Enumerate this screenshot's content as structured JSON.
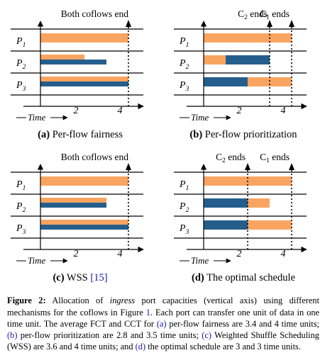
{
  "colors": {
    "orange": "#F9A561",
    "blue": "#255E8C",
    "link": "#1a1aa6"
  },
  "panels": [
    {
      "id": "a",
      "letter": "(a)",
      "title": "Per-flow fairness",
      "top_labels": [
        "Both coflows end"
      ],
      "arrows": [
        4
      ],
      "ports": [
        {
          "label": "P",
          "sub": "1",
          "segments": [
            {
              "color": "orange",
              "from": 0,
              "to": 4
            }
          ]
        },
        {
          "label": "P",
          "sub": "2",
          "segments": [
            {
              "color": "orange",
              "from": 0,
              "to": 2
            },
            {
              "color": "blue",
              "from": 0,
              "to": 3
            }
          ]
        },
        {
          "label": "P",
          "sub": "3",
          "segments": [
            {
              "color": "orange",
              "from": 0,
              "to": 4
            },
            {
              "color": "blue",
              "from": 0,
              "to": 4
            }
          ]
        }
      ]
    },
    {
      "id": "b",
      "letter": "(b)",
      "title": "Per-flow prioritization",
      "top_labels": [
        "C2 ends",
        "C1 ends"
      ],
      "arrows": [
        3,
        4
      ],
      "ports": [
        {
          "label": "P",
          "sub": "1",
          "segments": [
            {
              "color": "orange",
              "from": 0,
              "to": 4
            }
          ]
        },
        {
          "label": "P",
          "sub": "2",
          "segments": [
            {
              "color": "orange",
              "from": 0,
              "to": 1
            },
            {
              "color": "blue",
              "from": 1,
              "to": 3
            }
          ]
        },
        {
          "label": "P",
          "sub": "3",
          "segments": [
            {
              "color": "blue",
              "from": 0,
              "to": 2
            },
            {
              "color": "orange",
              "from": 2,
              "to": 4
            }
          ]
        }
      ]
    },
    {
      "id": "c",
      "letter": "(c)",
      "title": "WSS",
      "cite": "[15]",
      "top_labels": [
        "Both coflows end"
      ],
      "arrows": [
        4
      ],
      "ports": [
        {
          "label": "P",
          "sub": "1",
          "segments": [
            {
              "color": "orange",
              "from": 0,
              "to": 4
            }
          ]
        },
        {
          "label": "P",
          "sub": "2",
          "segments": [
            {
              "color": "orange",
              "from": 0,
              "to": 3
            },
            {
              "color": "blue",
              "from": 0,
              "to": 3
            }
          ]
        },
        {
          "label": "P",
          "sub": "3",
          "segments": [
            {
              "color": "orange",
              "from": 0,
              "to": 4
            },
            {
              "color": "blue",
              "from": 0,
              "to": 4
            }
          ]
        }
      ]
    },
    {
      "id": "d",
      "letter": "(d)",
      "title": "The optimal schedule",
      "top_labels": [
        "C2 ends",
        "C1 ends"
      ],
      "arrows": [
        2,
        4
      ],
      "ports": [
        {
          "label": "P",
          "sub": "1",
          "segments": [
            {
              "color": "orange",
              "from": 0,
              "to": 4
            }
          ]
        },
        {
          "label": "P",
          "sub": "2",
          "segments": [
            {
              "color": "blue",
              "from": 0,
              "to": 2
            },
            {
              "color": "orange",
              "from": 2,
              "to": 3
            }
          ]
        },
        {
          "label": "P",
          "sub": "3",
          "segments": [
            {
              "color": "blue",
              "from": 0,
              "to": 2
            },
            {
              "color": "orange",
              "from": 2,
              "to": 4
            }
          ]
        }
      ]
    }
  ],
  "axis": {
    "label": "Time",
    "ticks": [
      "2",
      "4"
    ]
  },
  "caption": {
    "label": "Figure 2:",
    "text_1": " Allocation of ",
    "ingress": "ingress",
    "text_2": " port capacities (vertical axis) using different mechanisms for the coflows in Figure ",
    "fig_ref": "1",
    "text_3": ". Each port can transfer one unit of data in one time unit. The average FCT and CCT for ",
    "ref_a": "(a)",
    "text_4": " per-flow fairness are 3.4 and 4 time units; ",
    "ref_b": "(b)",
    "text_5": " per-flow prioritization are 2.8 and 3.5 time units; ",
    "ref_c": "(c)",
    "text_6": " Weighted Shuffle Scheduling (WSS) are 3.6 and 4 time units; and ",
    "ref_d": "(d)",
    "text_7": " the optimal schedule are 3 and 3 time units."
  }
}
